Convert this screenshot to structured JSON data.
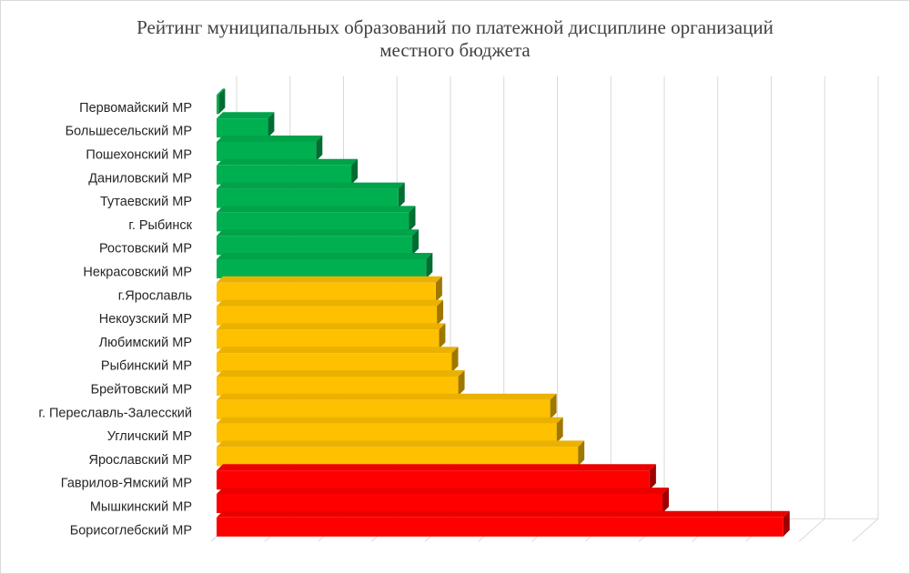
{
  "chart_data": {
    "type": "bar",
    "orientation": "horizontal",
    "title": "Рейтинг муниципальных  образований по платежной дисциплине организаций\nместного бюджета",
    "categories": [
      "Первомайский МР",
      "Большесельский МР",
      "Пошехонский МР",
      "Даниловский МР",
      "Тутаевский МР",
      "г. Рыбинск",
      "Ростовский МР",
      "Некрасовский МР",
      "г.Ярославль",
      "Некоузский МР",
      "Любимский МР",
      "Рыбинский МР",
      "Брейтовский МР",
      "г. Переславль-Залесский",
      "Угличский МР",
      "Ярославский МР",
      "Гаврилов-Ямский МР",
      "Мышкинский МР",
      "Борисоглебский МР"
    ],
    "values": [
      0.1,
      4.8,
      9.3,
      12.6,
      17.0,
      18.0,
      18.3,
      19.6,
      20.5,
      20.6,
      20.8,
      22.0,
      22.6,
      31.2,
      31.8,
      33.8,
      40.5,
      41.7,
      53.0
    ],
    "xlim": [
      0,
      60
    ],
    "grid": true,
    "legend": "none",
    "colors": {
      "green": "#00b050",
      "yellow": "#ffc000",
      "red": "#ff0000",
      "grid": "#d9d9d9"
    },
    "color_groups": [
      "green",
      "green",
      "green",
      "green",
      "green",
      "green",
      "green",
      "green",
      "yellow",
      "yellow",
      "yellow",
      "yellow",
      "yellow",
      "yellow",
      "yellow",
      "yellow",
      "red",
      "red",
      "red"
    ]
  }
}
